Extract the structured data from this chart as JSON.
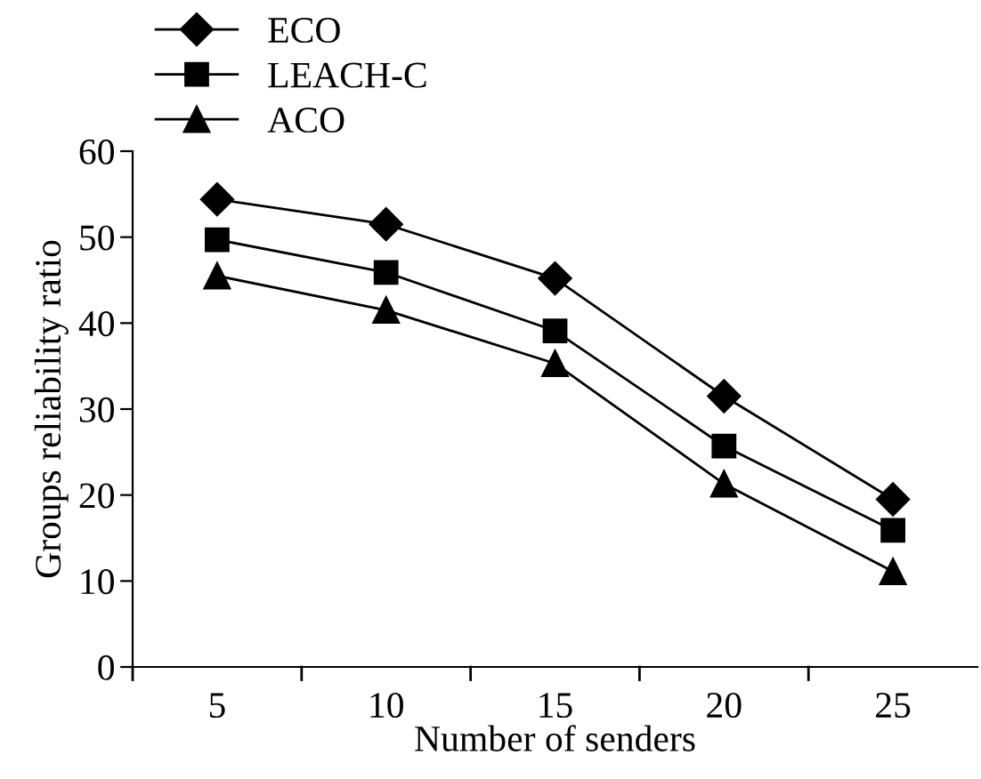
{
  "chart_data": {
    "type": "line",
    "xlabel": "Number of senders",
    "ylabel": "Groups reliability ratio",
    "categories": [
      "5",
      "10",
      "15",
      "20",
      "25"
    ],
    "series": [
      {
        "name": "ECO",
        "color": "#000000",
        "marker": "diamond",
        "values": [
          54.4,
          51.5,
          45.2,
          31.5,
          19.5
        ]
      },
      {
        "name": "LEACH-C",
        "color": "#000000",
        "marker": "square",
        "values": [
          49.7,
          45.9,
          39.1,
          25.7,
          15.9
        ]
      },
      {
        "name": "ACO",
        "color": "#000000",
        "marker": "triangle",
        "values": [
          45.5,
          41.5,
          35.3,
          21.3,
          11.1
        ]
      }
    ],
    "ylim": [
      0,
      60
    ],
    "yticks": [
      0,
      10,
      20,
      30,
      40,
      50,
      60
    ],
    "grid": false,
    "legend": "top left",
    "line_style": "solid"
  }
}
